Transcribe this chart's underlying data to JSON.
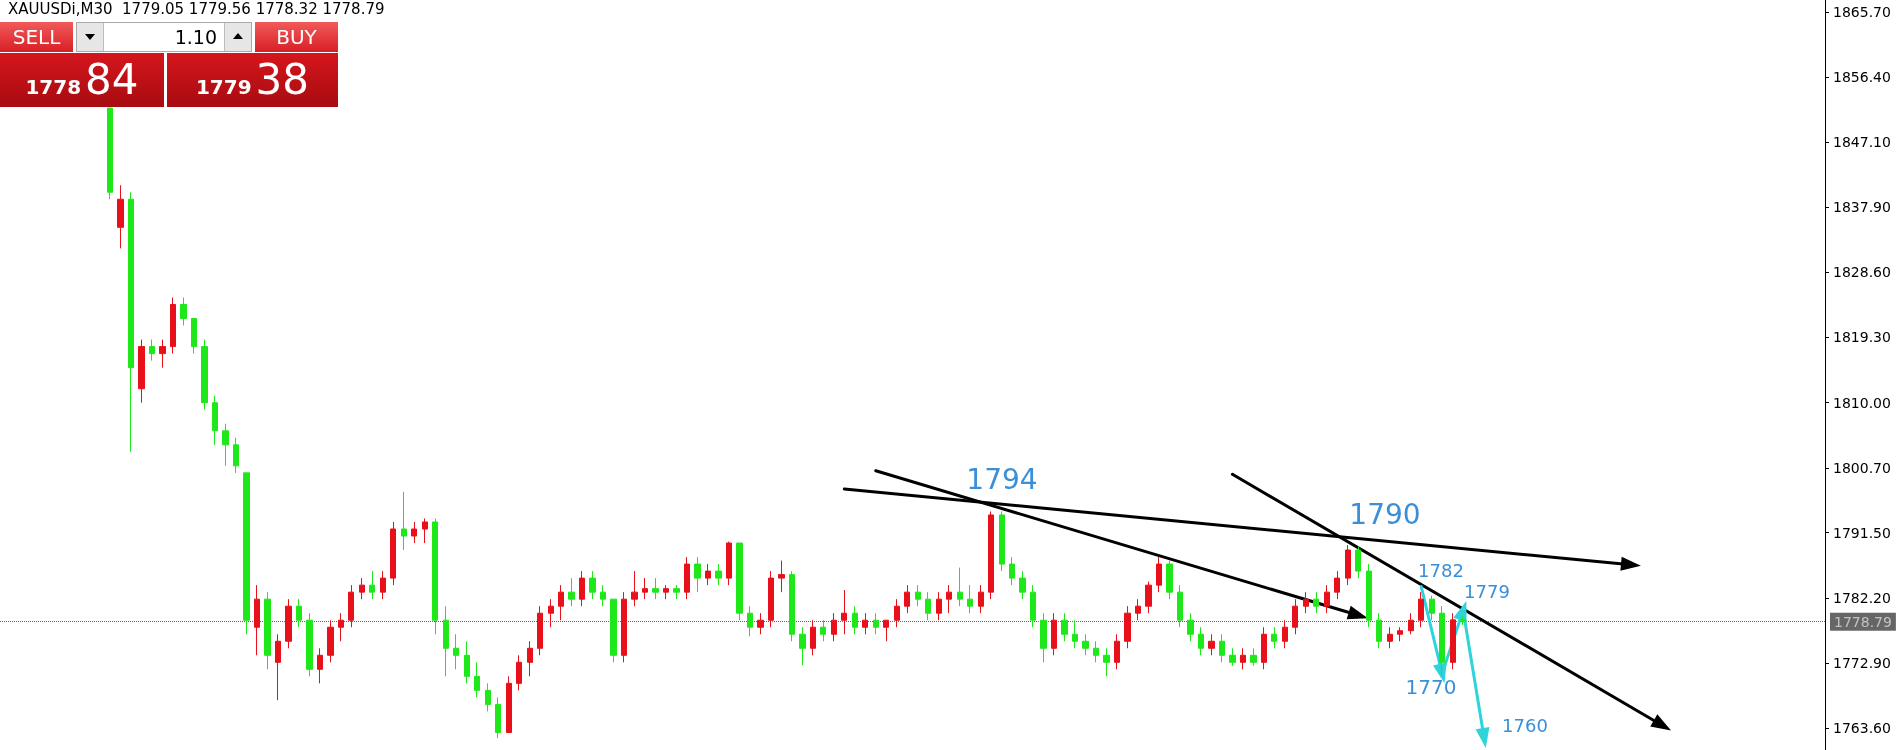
{
  "chart_data": {
    "type": "candlestick",
    "title": "XAUUSDi,M30  1779.05 1779.56 1778.32 1778.79",
    "annotations": [
      "SELL",
      "1.10",
      "BUY",
      "1778",
      "84",
      "1779",
      "38",
      "1794",
      "1790",
      "1782",
      "1779",
      "1770",
      "1760"
    ],
    "categories": [
      null,
      null,
      null,
      null,
      null,
      null,
      null,
      null,
      null,
      null,
      null,
      null,
      null,
      null,
      null,
      null,
      null,
      null,
      null,
      null,
      null,
      null,
      null,
      null,
      null,
      null,
      null,
      null,
      null,
      null,
      null,
      null,
      null,
      null,
      null,
      null,
      null,
      null,
      null,
      null,
      null,
      null,
      null,
      null,
      null,
      null,
      null,
      null,
      null,
      null,
      null,
      null,
      null,
      null,
      null,
      null,
      null,
      null,
      null,
      null,
      null,
      null,
      null,
      null,
      null,
      null,
      null,
      null,
      null,
      null,
      null,
      null,
      null,
      null,
      null,
      null,
      null,
      null,
      null,
      null,
      null,
      null,
      null,
      null,
      null,
      null,
      null,
      null,
      null,
      null,
      null,
      null,
      null,
      null,
      null,
      null,
      null,
      null,
      null,
      null,
      null,
      null,
      null,
      null,
      null,
      null,
      null,
      null,
      null,
      null,
      null,
      null,
      null,
      null,
      null,
      null,
      null,
      null,
      null,
      null,
      null,
      null,
      null,
      null,
      null,
      null,
      null,
      null,
      null,
      null,
      null,
      null,
      null,
      null,
      null,
      null,
      null,
      null,
      null,
      null,
      null,
      null,
      null,
      null,
      null,
      null,
      null,
      null,
      null,
      null,
      null,
      null,
      null,
      null,
      null,
      null,
      null,
      null,
      null,
      null,
      null,
      null,
      null,
      null,
      null,
      null,
      null,
      null,
      null,
      null,
      null,
      null,
      null,
      null
    ],
    "ylim": [
      1760.5,
      1867.4
    ],
    "yticks": [
      {
        "value": 1763.6,
        "label": "1763.60"
      },
      {
        "value": 1772.9,
        "label": "1772.90"
      },
      {
        "value": 1782.2,
        "label": "1782.20"
      },
      {
        "value": 1791.5,
        "label": "1791.50"
      },
      {
        "value": 1800.7,
        "label": "1800.70"
      },
      {
        "value": 1810,
        "label": "1810.00"
      },
      {
        "value": 1819.3,
        "label": "1819.30"
      },
      {
        "value": 1828.6,
        "label": "1828.60"
      },
      {
        "value": 1837.9,
        "label": "1837.90"
      },
      {
        "value": 1847.1,
        "label": "1847.10"
      },
      {
        "value": 1856.4,
        "label": "1856.40"
      },
      {
        "value": 1865.7,
        "label": "1865.70"
      }
    ],
    "tick_labels": "y",
    "ref_lines": [
      {
        "axis": "y",
        "value": 1778.79,
        "label": "1778.79",
        "color": "#000000"
      }
    ],
    "series": [
      {
        "ohlc": [
          null,
          null,
          null,
          null,
          null,
          null,
          null,
          null,
          null,
          null,
          [
            1852,
            1852,
            1839,
            1840
          ],
          [
            1835,
            1841,
            1832,
            1839
          ],
          [
            1839,
            1840,
            1803,
            1815
          ],
          [
            1812,
            1819,
            1810,
            1818
          ],
          [
            1818,
            1819,
            1816,
            1817
          ],
          [
            1817,
            1819,
            1815,
            1818
          ],
          [
            1818,
            1825,
            1817,
            1824
          ],
          [
            1824,
            1825,
            1821,
            1822
          ],
          [
            1822,
            1822,
            1817,
            1818
          ],
          [
            1818,
            1819,
            1809,
            1810
          ],
          [
            1810,
            1811,
            1804,
            1806
          ],
          [
            1806,
            1807,
            1801,
            1804
          ],
          [
            1804,
            1805,
            1800,
            1801
          ],
          [
            1800,
            1800,
            1777,
            1779
          ],
          [
            1778,
            1784,
            1774,
            1782
          ],
          [
            1782,
            1783,
            1772,
            1774
          ],
          [
            1773,
            1777,
            1767.6,
            1776
          ],
          [
            1776,
            1782,
            1775,
            1781
          ],
          [
            1781,
            1782,
            1778,
            1779
          ],
          [
            1779,
            1780,
            1771,
            1772
          ],
          [
            1772,
            1775,
            1770,
            1774
          ],
          [
            1774,
            1779,
            1773,
            1778
          ],
          [
            1778,
            1780,
            1776,
            1779
          ],
          [
            1779,
            1784,
            1778,
            1783
          ],
          [
            1783,
            1785,
            1782,
            1784
          ],
          [
            1784,
            1786,
            1782,
            1783
          ],
          [
            1783,
            1786,
            1782,
            1785
          ],
          [
            1785,
            1793,
            1784,
            1792
          ],
          [
            1792,
            1797.3,
            1789,
            1791
          ],
          [
            1791,
            1793,
            1790,
            1792
          ],
          [
            1792,
            1793.5,
            1790,
            1793
          ],
          [
            1793,
            1793.5,
            1777,
            1779
          ],
          [
            1779,
            1781,
            1771,
            1775
          ],
          [
            1775,
            1777,
            1772,
            1774
          ],
          [
            1774,
            1776,
            1770,
            1771
          ],
          [
            1771,
            1773,
            1768,
            1769
          ],
          [
            1769,
            1770,
            1766,
            1767
          ],
          [
            1767,
            1768,
            1762.2,
            1763
          ],
          [
            1763,
            1771,
            1763,
            1770
          ],
          [
            1770,
            1774,
            1769,
            1773
          ],
          [
            1773,
            1776,
            1771,
            1775
          ],
          [
            1775,
            1781,
            1774,
            1780
          ],
          [
            1780,
            1782,
            1778,
            1781
          ],
          [
            1781,
            1784,
            1779,
            1783
          ],
          [
            1783,
            1785,
            1781,
            1782
          ],
          [
            1782,
            1786,
            1781,
            1785
          ],
          [
            1785,
            1786,
            1782,
            1783
          ],
          [
            1783,
            1784,
            1781,
            1782
          ],
          [
            1782,
            1782,
            1773,
            1774
          ],
          [
            1774,
            1783,
            1773,
            1782
          ],
          [
            1782,
            1786,
            1781,
            1783
          ],
          [
            1783,
            1785,
            1782,
            1783.5
          ],
          [
            1783.5,
            1785,
            1782,
            1783
          ],
          [
            1783,
            1784,
            1782,
            1783.5
          ],
          [
            1783.5,
            1784,
            1782,
            1783
          ],
          [
            1783,
            1788,
            1782,
            1787
          ],
          [
            1787,
            1788,
            1783,
            1785
          ],
          [
            1785,
            1787,
            1784,
            1786
          ],
          [
            1786,
            1787,
            1784,
            1785
          ],
          [
            1785,
            1790.2,
            1784,
            1790
          ],
          [
            1790,
            1790,
            1779,
            1780
          ],
          [
            1780,
            1781,
            1776.7,
            1778
          ],
          [
            1778,
            1780,
            1777,
            1779
          ],
          [
            1779,
            1786,
            1778,
            1785
          ],
          [
            1785,
            1787.5,
            1783,
            1785.5
          ],
          [
            1785.5,
            1786,
            1776,
            1777
          ],
          [
            1777,
            1778,
            1772.6,
            1775
          ],
          [
            1775,
            1779,
            1774,
            1778
          ],
          [
            1778,
            1779,
            1776,
            1777
          ],
          [
            1777,
            1780,
            1776,
            1779
          ],
          [
            1779,
            1783.3,
            1777,
            1780
          ],
          [
            1780,
            1781,
            1777,
            1778
          ],
          [
            1778,
            1780,
            1777,
            1779
          ],
          [
            1779,
            1780,
            1777,
            1778
          ],
          [
            1778,
            1779,
            1776,
            1779
          ],
          [
            1779,
            1782,
            1778,
            1781
          ],
          [
            1781,
            1784,
            1780,
            1783
          ],
          [
            1783,
            1784,
            1781,
            1782
          ],
          [
            1782,
            1783,
            1779,
            1780
          ],
          [
            1780,
            1783,
            1779,
            1782
          ],
          [
            1782,
            1784,
            1780,
            1783
          ],
          [
            1783,
            1786.5,
            1781,
            1782
          ],
          [
            1782,
            1784,
            1780,
            1781
          ],
          [
            1781,
            1784,
            1780,
            1783
          ],
          [
            1783,
            1794.5,
            1782,
            1794
          ],
          [
            1794,
            1794.5,
            1786,
            1787
          ],
          [
            1787,
            1788,
            1784,
            1785
          ],
          [
            1785,
            1786,
            1782,
            1783
          ],
          [
            1783,
            1784,
            1778,
            1779
          ],
          [
            1779,
            1780,
            1773,
            1775
          ],
          [
            1775,
            1780,
            1774,
            1779
          ],
          [
            1779,
            1780,
            1776,
            1777
          ],
          [
            1777,
            1779,
            1775,
            1776
          ],
          [
            1776,
            1777,
            1774,
            1775
          ],
          [
            1775,
            1776,
            1773,
            1774
          ],
          [
            1774,
            1775,
            1771,
            1773
          ],
          [
            1773,
            1777,
            1772,
            1776
          ],
          [
            1776,
            1781,
            1775,
            1780
          ],
          [
            1780,
            1782,
            1779,
            1781
          ],
          [
            1781,
            1784.5,
            1780,
            1784
          ],
          [
            1784,
            1788,
            1783,
            1787
          ],
          [
            1787,
            1787.5,
            1782,
            1783
          ],
          [
            1783,
            1784,
            1778,
            1779
          ],
          [
            1779,
            1780,
            1776,
            1777
          ],
          [
            1777,
            1778,
            1774,
            1775
          ],
          [
            1775,
            1777,
            1774,
            1776
          ],
          [
            1776,
            1777,
            1773,
            1774
          ],
          [
            1774,
            1775,
            1772.5,
            1773
          ],
          [
            1773,
            1775,
            1772,
            1774
          ],
          [
            1774,
            1775,
            1772.5,
            1773
          ],
          [
            1773,
            1778,
            1772,
            1777
          ],
          [
            1777,
            1778,
            1775,
            1776
          ],
          [
            1776,
            1779,
            1775,
            1778
          ],
          [
            1778,
            1782,
            1777,
            1781
          ],
          [
            1781,
            1783,
            1780,
            1782
          ],
          [
            1782,
            1783,
            1780,
            1781
          ],
          [
            1781,
            1784,
            1780,
            1783
          ],
          [
            1783,
            1786,
            1782,
            1785
          ],
          [
            1785,
            1789.7,
            1784,
            1789
          ],
          [
            1789,
            1789.5,
            1785,
            1786
          ],
          [
            1786,
            1787,
            1778,
            1779
          ],
          [
            1779,
            1780,
            1775,
            1776
          ],
          [
            1776,
            1778,
            1775,
            1777
          ],
          [
            1777,
            1778,
            1776,
            1777.5
          ],
          [
            1777.5,
            1780,
            1777,
            1779
          ],
          [
            1779,
            1783,
            1778,
            1782
          ],
          [
            1782,
            1782.5,
            1779,
            1780
          ],
          [
            1780,
            1781,
            1771,
            1773
          ],
          [
            1773,
            1780,
            1772,
            1779.05
          ],
          [
            1779.05,
            1779.56,
            1778.32,
            1778.79
          ],
          null,
          null,
          null,
          null,
          null,
          null,
          null,
          null,
          null,
          null,
          null,
          null,
          null,
          null,
          null,
          null,
          null,
          null,
          null,
          null,
          null,
          null,
          null,
          null,
          null,
          null,
          null,
          null,
          null,
          null,
          null,
          null,
          null,
          null
        ],
        "colors": [
          null,
          null,
          null,
          null,
          null,
          null,
          null,
          null,
          null,
          null,
          "#1ee81a",
          "#e8101a",
          "#1ee81a",
          "#e8101a",
          "#1ee81a",
          "#e8101a",
          "#e8101a",
          "#1ee81a",
          "#1ee81a",
          "#1ee81a",
          "#1ee81a",
          "#1ee81a",
          "#1ee81a",
          "#1ee81a",
          "#e8101a",
          "#1ee81a",
          "#e8101a",
          "#e8101a",
          "#1ee81a",
          "#1ee81a",
          "#e8101a",
          "#e8101a",
          "#e8101a",
          "#e8101a",
          "#e8101a",
          "#1ee81a",
          "#e8101a",
          "#e8101a",
          "#1ee81a",
          "#e8101a",
          "#e8101a",
          "#1ee81a",
          "#1ee81a",
          "#1ee81a",
          "#1ee81a",
          "#1ee81a",
          "#1ee81a",
          "#1ee81a",
          "#e8101a",
          "#e8101a",
          "#e8101a",
          "#e8101a",
          "#e8101a",
          "#e8101a",
          "#1ee81a",
          "#e8101a",
          "#1ee81a",
          "#1ee81a",
          "#1ee81a",
          "#e8101a",
          "#e8101a",
          "#e8101a",
          "#1ee81a",
          "#e8101a",
          "#1ee81a",
          "#e8101a",
          "#1ee81a",
          "#e8101a",
          "#1ee81a",
          "#e8101a",
          "#1ee81a",
          "#1ee81a",
          "#e8101a",
          "#e8101a",
          "#e8101a",
          "#1ee81a",
          "#1ee81a",
          "#e8101a",
          "#1ee81a",
          "#e8101a",
          "#e8101a",
          "#1ee81a",
          "#e8101a",
          "#1ee81a",
          "#e8101a",
          "#e8101a",
          "#e8101a",
          "#1ee81a",
          "#1ee81a",
          "#e8101a",
          "#e8101a",
          "#1ee81a",
          "#1ee81a",
          "#e8101a",
          "#e8101a",
          "#1ee81a",
          "#1ee81a",
          "#1ee81a",
          "#1ee81a",
          "#1ee81a",
          "#e8101a",
          "#1ee81a",
          "#1ee81a",
          "#1ee81a",
          "#1ee81a",
          "#1ee81a",
          "#e8101a",
          "#e8101a",
          "#e8101a",
          "#e8101a",
          "#e8101a",
          "#1ee81a",
          "#1ee81a",
          "#1ee81a",
          "#1ee81a",
          "#e8101a",
          "#1ee81a",
          "#1ee81a",
          "#e8101a",
          "#1ee81a",
          "#e8101a",
          "#1ee81a",
          "#e8101a",
          "#e8101a",
          "#e8101a",
          "#1ee81a",
          "#e8101a",
          "#e8101a",
          "#e8101a",
          "#1ee81a",
          "#1ee81a",
          "#1ee81a",
          "#e8101a",
          "#e8101a",
          "#e8101a",
          "#e8101a",
          "#1ee81a",
          "#1ee81a",
          "#e8101a",
          "#1ee81a",
          null,
          null,
          null,
          null,
          null,
          null,
          null,
          null,
          null,
          null,
          null,
          null,
          null,
          null,
          null,
          null,
          null,
          null,
          null,
          null,
          null,
          null,
          null,
          null,
          null,
          null,
          null,
          null,
          null,
          null,
          null,
          null,
          null,
          null
        ]
      },
      {
        "type": "line",
        "color": "#000000",
        "marker": "triangle",
        "values": [
          null,
          null,
          null,
          null,
          null,
          null,
          null,
          null,
          null,
          null,
          null,
          null,
          null,
          null,
          null,
          null,
          null,
          null,
          null,
          null,
          null,
          null,
          null,
          null,
          null,
          null,
          null,
          null,
          null,
          null,
          null,
          null,
          null,
          null,
          null,
          null,
          null,
          null,
          null,
          null,
          null,
          null,
          null,
          null,
          null,
          null,
          null,
          null,
          null,
          null,
          null,
          null,
          null,
          null,
          null,
          null,
          null,
          null,
          null,
          null,
          null,
          null,
          null,
          null,
          null,
          null,
          null,
          null,
          null,
          null,
          null,
          null,
          null,
          null,
          null,
          null,
          null,
          null,
          null,
          null,
          1797.7,
          null,
          null,
          null,
          null,
          null,
          null,
          null,
          null,
          null,
          null,
          null,
          null,
          null,
          null,
          null,
          null,
          null,
          null,
          null,
          null,
          null,
          null,
          null,
          null,
          null,
          null,
          null,
          null,
          null,
          null,
          null,
          null,
          null,
          null,
          null,
          null,
          null,
          null,
          null,
          null,
          null,
          null,
          null,
          null,
          null,
          null,
          null,
          null,
          null,
          null,
          null,
          null,
          null,
          null,
          null,
          null,
          null,
          null,
          null,
          null,
          null,
          null,
          null,
          null,
          null,
          null,
          null,
          null,
          null,
          null,
          null,
          null,
          null,
          null,
          1786.9,
          null,
          null,
          null,
          null,
          null,
          null,
          null,
          null,
          null,
          null,
          null,
          null,
          null,
          null,
          null,
          null,
          null,
          null
        ]
      },
      {
        "type": "line",
        "color": "#000000",
        "marker": "triangle",
        "values": [
          null,
          null,
          null,
          null,
          null,
          null,
          null,
          null,
          null,
          null,
          null,
          null,
          null,
          null,
          null,
          null,
          null,
          null,
          null,
          null,
          null,
          null,
          null,
          null,
          null,
          null,
          null,
          null,
          null,
          null,
          null,
          null,
          null,
          null,
          null,
          null,
          null,
          null,
          null,
          null,
          null,
          null,
          null,
          null,
          null,
          null,
          null,
          null,
          null,
          null,
          null,
          null,
          null,
          null,
          null,
          null,
          null,
          null,
          null,
          null,
          null,
          null,
          null,
          null,
          null,
          null,
          null,
          null,
          null,
          null,
          null,
          null,
          null,
          null,
          null,
          null,
          null,
          null,
          null,
          null,
          null,
          null,
          null,
          1800.3,
          null,
          null,
          null,
          null,
          null,
          null,
          null,
          null,
          null,
          null,
          null,
          null,
          null,
          null,
          null,
          null,
          null,
          null,
          null,
          null,
          null,
          null,
          null,
          null,
          null,
          null,
          null,
          null,
          null,
          null,
          null,
          null,
          null,
          null,
          null,
          null,
          null,
          null,
          null,
          null,
          null,
          null,
          null,
          null,
          null,
          1779.7,
          null,
          null,
          null,
          null,
          null,
          null,
          null,
          null,
          null,
          null,
          null,
          null,
          null,
          null,
          null,
          null,
          null,
          null,
          null,
          null,
          null,
          null,
          null,
          null,
          null,
          null,
          null,
          null,
          null,
          null,
          null,
          null,
          null,
          null,
          null,
          null,
          null,
          null,
          null,
          null,
          null,
          null,
          null,
          null
        ]
      },
      {
        "type": "line",
        "color": "#000000",
        "marker": "triangle",
        "values": [
          null,
          null,
          null,
          null,
          null,
          null,
          null,
          null,
          null,
          null,
          null,
          null,
          null,
          null,
          null,
          null,
          null,
          null,
          null,
          null,
          null,
          null,
          null,
          null,
          null,
          null,
          null,
          null,
          null,
          null,
          null,
          null,
          null,
          null,
          null,
          null,
          null,
          null,
          null,
          null,
          null,
          null,
          null,
          null,
          null,
          null,
          null,
          null,
          null,
          null,
          null,
          null,
          null,
          null,
          null,
          null,
          null,
          null,
          null,
          null,
          null,
          null,
          null,
          null,
          null,
          null,
          null,
          null,
          null,
          null,
          null,
          null,
          null,
          null,
          null,
          null,
          null,
          null,
          null,
          null,
          null,
          null,
          null,
          null,
          null,
          null,
          null,
          null,
          null,
          null,
          null,
          null,
          null,
          null,
          null,
          null,
          null,
          null,
          null,
          null,
          null,
          null,
          null,
          null,
          null,
          null,
          null,
          null,
          null,
          null,
          null,
          null,
          null,
          null,
          null,
          null,
          null,
          1799.8,
          null,
          null,
          null,
          null,
          null,
          null,
          null,
          null,
          null,
          null,
          null,
          null,
          null,
          null,
          null,
          null,
          null,
          null,
          null,
          null,
          null,
          null,
          null,
          null,
          null,
          null,
          null,
          null,
          null,
          null,
          null,
          null,
          null,
          null,
          null,
          null,
          null,
          null,
          null,
          null,
          1764.0,
          null,
          null,
          null,
          null,
          null,
          null,
          null,
          null,
          null,
          null,
          null,
          null,
          null,
          null,
          null
        ]
      },
      {
        "type": "line",
        "color": "#2ed3dc",
        "marker": "triangle",
        "values": [
          null,
          null,
          null,
          null,
          null,
          null,
          null,
          null,
          null,
          null,
          null,
          null,
          null,
          null,
          null,
          null,
          null,
          null,
          null,
          null,
          null,
          null,
          null,
          null,
          null,
          null,
          null,
          null,
          null,
          null,
          null,
          null,
          null,
          null,
          null,
          null,
          null,
          null,
          null,
          null,
          null,
          null,
          null,
          null,
          null,
          null,
          null,
          null,
          null,
          null,
          null,
          null,
          null,
          null,
          null,
          null,
          null,
          null,
          null,
          null,
          null,
          null,
          null,
          null,
          null,
          null,
          null,
          null,
          null,
          null,
          null,
          null,
          null,
          null,
          null,
          null,
          null,
          null,
          null,
          null,
          null,
          null,
          null,
          null,
          null,
          null,
          null,
          null,
          null,
          null,
          null,
          null,
          null,
          null,
          null,
          null,
          null,
          null,
          null,
          null,
          null,
          null,
          null,
          null,
          null,
          null,
          null,
          null,
          null,
          null,
          null,
          null,
          null,
          null,
          null,
          null,
          null,
          null,
          null,
          null,
          null,
          null,
          null,
          null,
          null,
          null,
          null,
          null,
          null,
          null,
          null,
          null,
          null,
          null,
          null,
          1783.8,
          null,
          1771.4,
          null,
          1780.4,
          null,
          1762.2,
          null,
          null,
          null,
          null,
          null,
          null,
          null,
          null,
          null,
          null,
          null,
          null,
          null,
          null,
          null,
          null,
          null,
          null,
          null,
          null,
          null,
          null,
          null,
          null,
          null,
          null,
          null,
          null,
          null,
          null,
          null,
          null
        ]
      }
    ]
  }
}
